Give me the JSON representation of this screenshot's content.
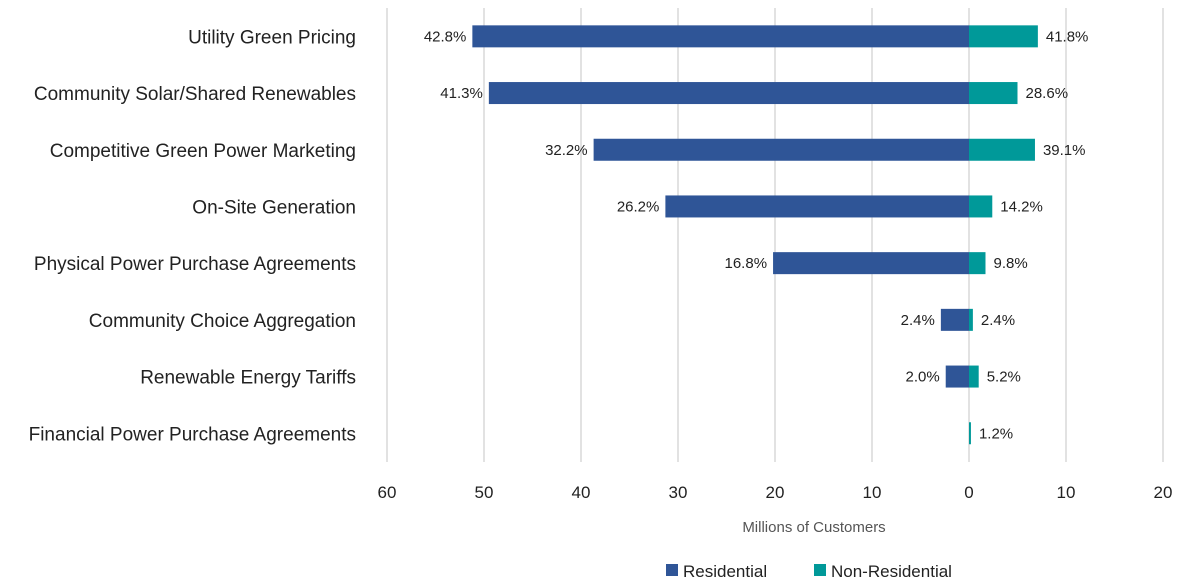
{
  "chart_data": {
    "type": "bar",
    "orientation": "horizontal-diverging",
    "categories": [
      "Utility Green Pricing",
      "Community Solar/Shared Renewables",
      "Competitive Green Power Marketing",
      "On-Site Generation",
      "Physical Power Purchase Agreements",
      "Community Choice Aggregation",
      "Renewable Energy Tariffs",
      "Financial Power Purchase Agreements"
    ],
    "series": [
      {
        "name": "Residential",
        "color": "#2f5597",
        "values": [
          51.2,
          49.5,
          38.7,
          31.3,
          20.2,
          2.9,
          2.4,
          0
        ],
        "labels": [
          "42.8%",
          "41.3%",
          "32.2%",
          "26.2%",
          "16.8%",
          "2.4%",
          "2.0%",
          ""
        ]
      },
      {
        "name": "Non-Residential",
        "color": "#009999",
        "values": [
          7.1,
          5.0,
          6.8,
          2.4,
          1.7,
          0.4,
          1.0,
          0.2
        ],
        "labels": [
          "41.8%",
          "28.6%",
          "39.1%",
          "14.2%",
          "9.8%",
          "2.4%",
          "5.2%",
          "1.2%"
        ]
      }
    ],
    "xaxis": {
      "title": "Millions of Customers",
      "range": [
        -60,
        20
      ],
      "ticks": [
        -60,
        -50,
        -40,
        -30,
        -20,
        -10,
        0,
        10,
        20
      ],
      "tick_labels": [
        "60",
        "50",
        "40",
        "30",
        "20",
        "10",
        "0",
        "10",
        "20"
      ]
    },
    "grid": true,
    "legend": "bottom-right"
  }
}
